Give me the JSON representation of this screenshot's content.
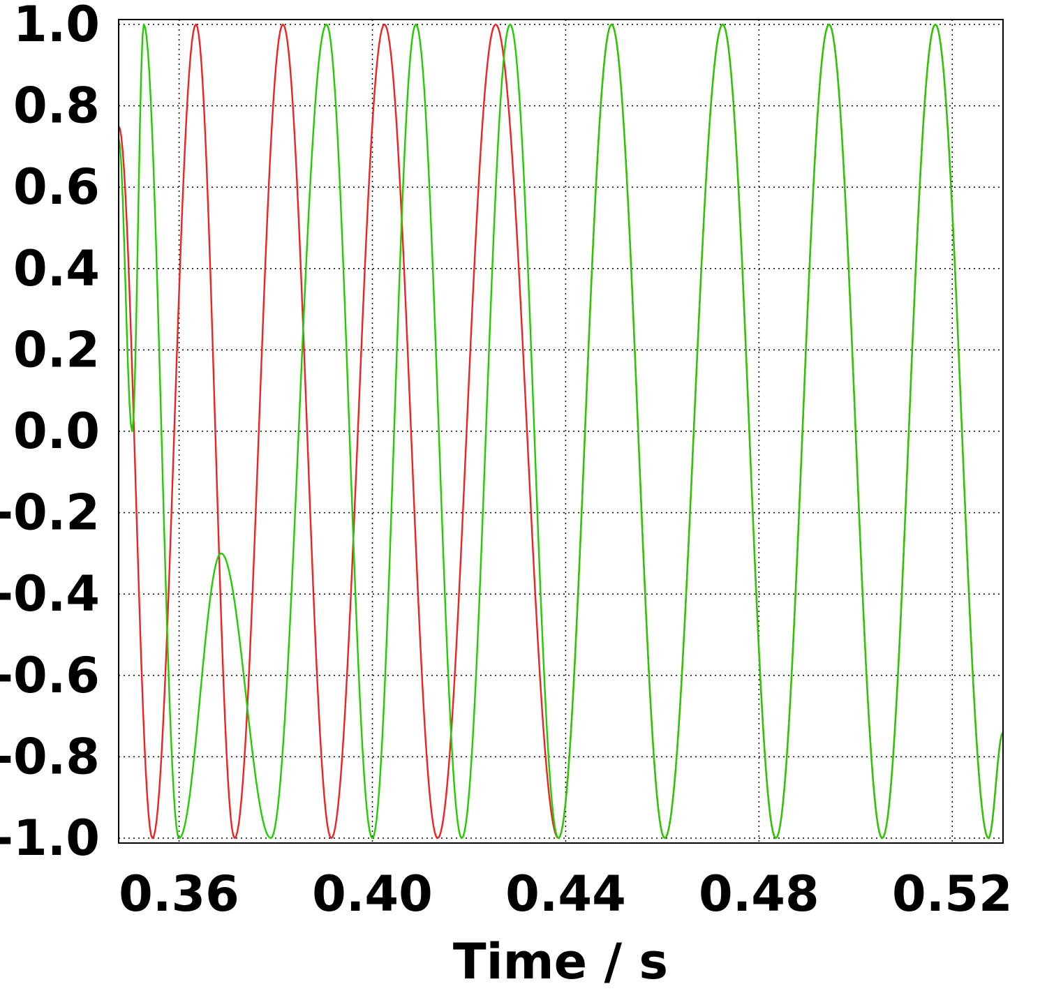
{
  "chart_data": {
    "type": "line",
    "title": "",
    "xlabel": "Time / s",
    "ylabel": "",
    "xlim": [
      0.3475,
      0.5305
    ],
    "ylim": [
      -1.0,
      1.0
    ],
    "x_ticks": [
      0.36,
      0.4,
      0.44,
      0.48,
      0.52
    ],
    "x_tick_labels": [
      "0.36",
      "0.40",
      "0.44",
      "0.48",
      "0.52"
    ],
    "y_ticks": [
      1.0,
      0.8,
      0.6,
      0.4,
      0.2,
      0.0,
      -0.2,
      -0.4,
      -0.6,
      -0.8,
      -1.0
    ],
    "y_tick_labels": [
      "1.0",
      "0.8",
      "0.6",
      "0.4",
      "0.2",
      "0.0",
      "-0.2",
      "-0.4",
      "-0.6",
      "-0.8",
      "-1.0"
    ],
    "grid": true,
    "legend": "none",
    "series": [
      {
        "color": "#ee2222",
        "x": [
          0.3475,
          0.3475,
          0.3545,
          0.3635,
          0.3715,
          0.3815,
          0.3915,
          0.4025,
          0.4135,
          0.4255,
          0.4385,
          0.4495,
          0.4605,
          0.4725,
          0.4835,
          0.4945,
          0.5055,
          0.5165,
          0.5275,
          0.5305
        ],
        "y": [
          0.75,
          0.75,
          -1.0,
          1.0,
          -1.0,
          1.0,
          -1.0,
          1.0,
          -1.0,
          1.0,
          -1.0,
          1.0,
          -1.0,
          1.0,
          -1.0,
          1.0,
          -1.0,
          1.0,
          -1.0,
          -0.74
        ]
      },
      {
        "color": "#22cc00",
        "x": [
          0.3475,
          0.3503,
          0.3527,
          0.36,
          0.3687,
          0.379,
          0.3905,
          0.4,
          0.409,
          0.4185,
          0.4285,
          0.4385,
          0.4495,
          0.4605,
          0.4725,
          0.4835,
          0.4945,
          0.5055,
          0.5165,
          0.5275,
          0.5305
        ],
        "y": [
          0.72,
          0.0,
          1.0,
          -1.0,
          -0.3,
          -1.0,
          1.0,
          -1.0,
          1.0,
          -1.0,
          1.0,
          -1.0,
          1.0,
          -1.0,
          1.0,
          -1.0,
          1.0,
          -1.0,
          1.0,
          -1.0,
          -0.74
        ]
      }
    ]
  }
}
